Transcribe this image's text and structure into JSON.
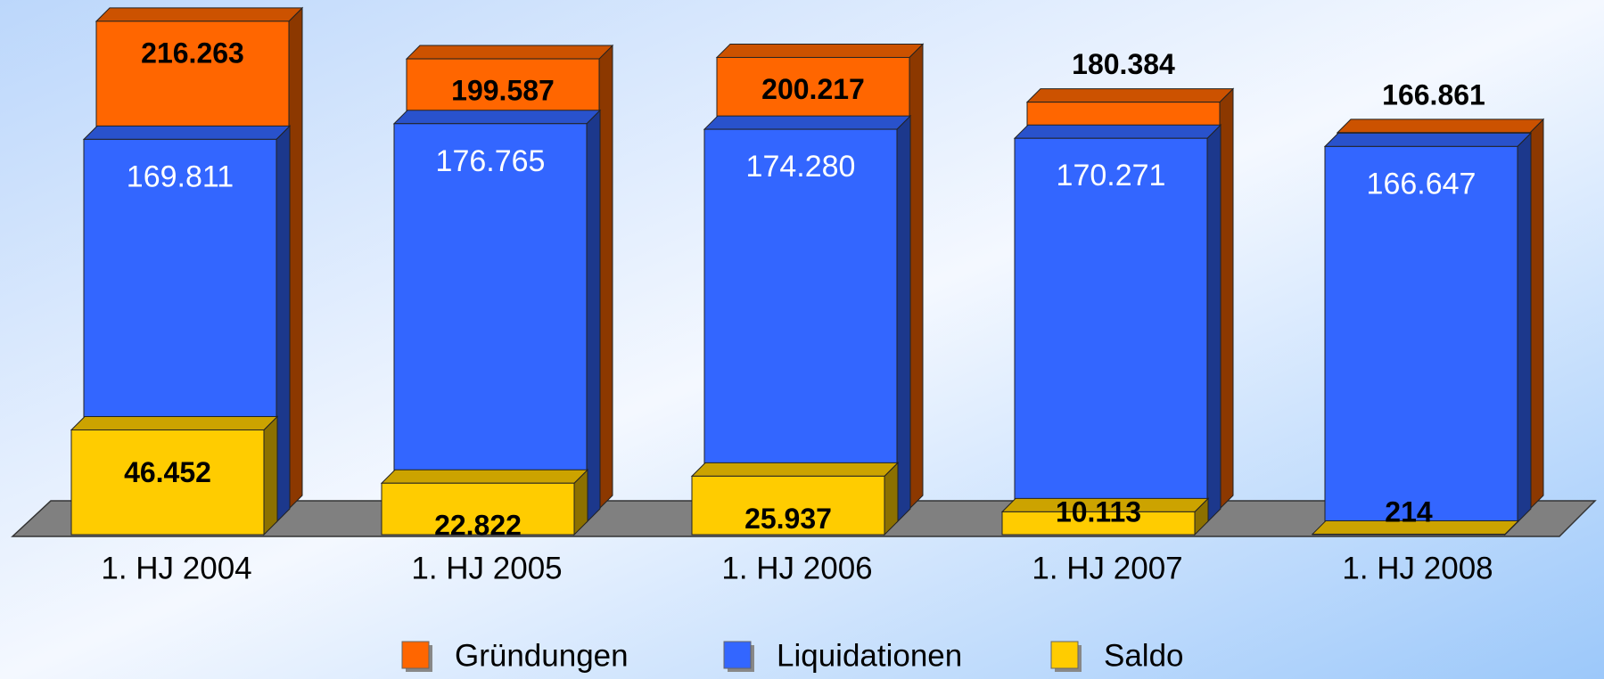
{
  "chart_data": {
    "type": "bar3d",
    "categories": [
      "1. HJ 2004",
      "1. HJ 2005",
      "1. HJ 2006",
      "1. HJ 2007",
      "1. HJ 2008"
    ],
    "series": [
      {
        "name": "Gründungen",
        "color": "#ff6600",
        "values": [
          216263,
          199587,
          200217,
          180384,
          166861
        ],
        "value_labels": [
          "216.263",
          "199.587",
          "200.217",
          "180.384",
          "166.861"
        ]
      },
      {
        "name": "Liquidationen",
        "color": "#3366ff",
        "values": [
          169811,
          176765,
          174280,
          170271,
          166647
        ],
        "value_labels": [
          "169.811",
          "176.765",
          "174.280",
          "170.271",
          "166.647"
        ]
      },
      {
        "name": "Saldo",
        "color": "#ffcc00",
        "values": [
          46452,
          22822,
          25937,
          10113,
          214
        ],
        "value_labels": [
          "46.452",
          "22.822",
          "25.937",
          "10.113",
          "214"
        ]
      }
    ],
    "legend": "bottom"
  }
}
